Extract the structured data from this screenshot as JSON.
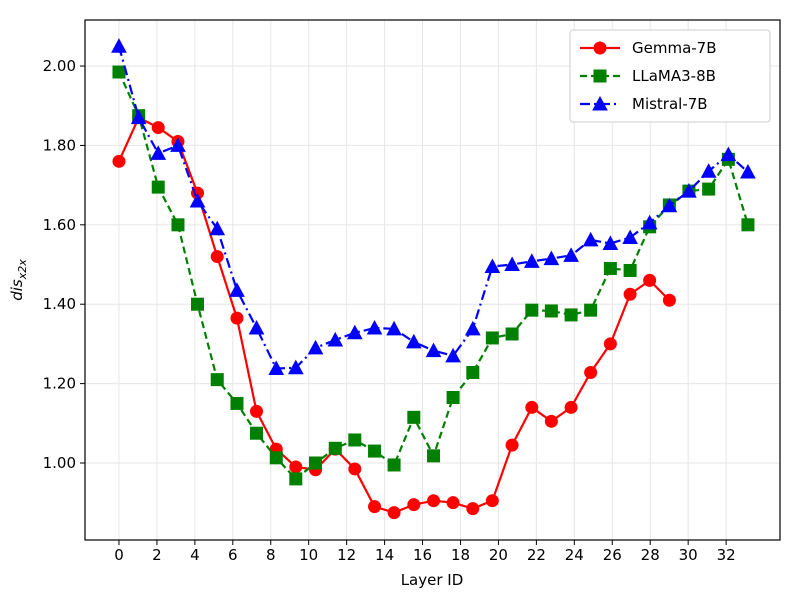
{
  "chart_data": {
    "type": "line",
    "xlabel": "Layer ID",
    "ylabel": {
      "text": "dis",
      "subscript": "x2x"
    },
    "xlim": [
      -1.79,
      34.84
    ],
    "ylim": [
      0.806,
      2.116
    ],
    "xticks": [
      0,
      2,
      4,
      6,
      8,
      10,
      12,
      14,
      16,
      18,
      20,
      22,
      24,
      26,
      28,
      30,
      32
    ],
    "yticks": [
      {
        "value": 1.0,
        "label": "1.00"
      },
      {
        "value": 1.2,
        "label": "1.20"
      },
      {
        "value": 1.4,
        "label": "1.40"
      },
      {
        "value": 1.6,
        "label": "1.60"
      },
      {
        "value": 1.8,
        "label": "1.80"
      },
      {
        "value": 2.0,
        "label": "2.00"
      }
    ],
    "grid": true,
    "legend": "upper right",
    "series": [
      {
        "name": "Gemma-7B",
        "color": "#ff0000",
        "dash": "solid",
        "marker": "circle",
        "x": [
          0,
          1.04,
          2.07,
          3.11,
          4.14,
          5.18,
          6.22,
          7.25,
          8.29,
          9.32,
          10.36,
          11.4,
          12.43,
          13.47,
          14.5,
          15.54,
          16.58,
          17.61,
          18.65,
          19.68,
          20.72,
          21.76,
          22.79,
          23.83,
          24.86,
          25.9,
          26.94,
          27.97,
          29.01
        ],
        "values": [
          1.76,
          1.87,
          1.845,
          1.81,
          1.68,
          1.52,
          1.365,
          1.13,
          1.035,
          0.99,
          0.983,
          1.035,
          0.985,
          0.89,
          0.875,
          0.895,
          0.905,
          0.9,
          0.885,
          0.905,
          1.045,
          1.14,
          1.105,
          1.14,
          1.228,
          1.3,
          1.425,
          1.46,
          1.41
        ]
      },
      {
        "name": "LLaMA3-8B",
        "color": "#008000",
        "dash": "dashed",
        "marker": "square",
        "x": [
          0,
          1.04,
          2.07,
          3.11,
          4.14,
          5.18,
          6.22,
          7.25,
          8.29,
          9.32,
          10.36,
          11.4,
          12.43,
          13.47,
          14.5,
          15.54,
          16.58,
          17.61,
          18.65,
          19.68,
          20.72,
          21.76,
          22.79,
          23.83,
          24.86,
          25.9,
          26.94,
          27.97,
          29.01,
          30.04,
          31.08,
          32.12,
          33.15
        ],
        "values": [
          1.985,
          1.875,
          1.695,
          1.6,
          1.4,
          1.21,
          1.15,
          1.075,
          1.013,
          0.96,
          1.0,
          1.037,
          1.058,
          1.03,
          0.995,
          1.115,
          1.018,
          1.165,
          1.228,
          1.315,
          1.325,
          1.385,
          1.383,
          1.373,
          1.385,
          1.49,
          1.485,
          1.595,
          1.65,
          1.685,
          1.69,
          1.765,
          1.6
        ]
      },
      {
        "name": "Mistral-7B",
        "color": "#0000ff",
        "dash": "dashdot",
        "marker": "triangle",
        "x": [
          0,
          1.04,
          2.07,
          3.11,
          4.14,
          5.18,
          6.22,
          7.25,
          8.29,
          9.32,
          10.36,
          11.4,
          12.43,
          13.47,
          14.5,
          15.54,
          16.58,
          17.61,
          18.65,
          19.68,
          20.72,
          21.76,
          22.79,
          23.83,
          24.86,
          25.9,
          26.94,
          27.97,
          29.01,
          30.04,
          31.08,
          32.12,
          33.15
        ],
        "values": [
          2.05,
          1.87,
          1.78,
          1.8,
          1.66,
          1.59,
          1.435,
          1.34,
          1.238,
          1.24,
          1.29,
          1.31,
          1.328,
          1.34,
          1.338,
          1.305,
          1.283,
          1.27,
          1.338,
          1.495,
          1.5,
          1.508,
          1.515,
          1.523,
          1.562,
          1.553,
          1.568,
          1.605,
          1.648,
          1.685,
          1.735,
          1.777,
          1.733
        ]
      }
    ]
  }
}
